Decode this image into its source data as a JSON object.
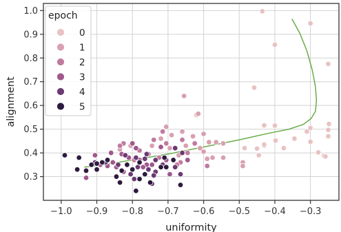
{
  "chart_data": {
    "type": "scatter",
    "xlabel": "uniformity",
    "ylabel": "alignment",
    "xlim": [
      -1.05,
      -0.22
    ],
    "ylim": [
      0.2,
      1.03
    ],
    "xticks": [
      -1.0,
      -0.9,
      -0.8,
      -0.7,
      -0.6,
      -0.5,
      -0.4,
      -0.3
    ],
    "xtick_labels": [
      "−1.0",
      "−0.9",
      "−0.8",
      "−0.7",
      "−0.6",
      "−0.5",
      "−0.4",
      "−0.3"
    ],
    "yticks": [
      0.3,
      0.4,
      0.5,
      0.6,
      0.7,
      0.8,
      0.9,
      1.0
    ],
    "ytick_labels": [
      "0.3",
      "0.4",
      "0.5",
      "0.6",
      "0.7",
      "0.8",
      "0.9",
      "1.0"
    ],
    "grid": true,
    "legend": {
      "title": "epoch",
      "placement": "top-left"
    },
    "series": [
      {
        "name": "0",
        "color": "#e8c3c3",
        "points": [
          [
            -0.435,
            0.997
          ],
          [
            -0.3,
            0.946
          ],
          [
            -0.4,
            0.856
          ],
          [
            -0.25,
            0.775
          ],
          [
            -0.458,
            0.675
          ],
          [
            -0.248,
            0.522
          ],
          [
            -0.43,
            0.516
          ],
          [
            -0.25,
            0.497
          ],
          [
            -0.4,
            0.515
          ],
          [
            -0.3,
            0.505
          ],
          [
            -0.25,
            0.47
          ],
          [
            -0.398,
            0.452
          ],
          [
            -0.3,
            0.447
          ],
          [
            -0.43,
            0.43
          ],
          [
            -0.45,
            0.418
          ],
          [
            -0.278,
            0.402
          ],
          [
            -0.262,
            0.388
          ],
          [
            -0.258,
            0.385
          ],
          [
            -0.445,
            0.39
          ],
          [
            -0.375,
            0.42
          ],
          [
            -0.485,
            0.42
          ],
          [
            -0.43,
            0.435
          ],
          [
            -0.31,
            0.49
          ],
          [
            -0.345,
            0.46
          ],
          [
            -0.62,
            0.56
          ]
        ]
      },
      {
        "name": "1",
        "color": "#d8a0b0",
        "points": [
          [
            -0.655,
            0.64
          ],
          [
            -0.615,
            0.565
          ],
          [
            -0.705,
            0.51
          ],
          [
            -0.66,
            0.49
          ],
          [
            -0.69,
            0.475
          ],
          [
            -0.63,
            0.47
          ],
          [
            -0.6,
            0.48
          ],
          [
            -0.72,
            0.46
          ],
          [
            -0.565,
            0.445
          ],
          [
            -0.61,
            0.42
          ],
          [
            -0.6,
            0.405
          ],
          [
            -0.65,
            0.43
          ],
          [
            -0.59,
            0.375
          ],
          [
            -0.545,
            0.44
          ],
          [
            -0.49,
            0.36
          ],
          [
            -0.745,
            0.43
          ],
          [
            -0.695,
            0.42
          ],
          [
            -0.805,
            0.43
          ],
          [
            -0.835,
            0.415
          ],
          [
            -0.86,
            0.4
          ],
          [
            -0.67,
            0.39
          ],
          [
            -0.585,
            0.445
          ],
          [
            -0.49,
            0.345
          ],
          [
            -0.545,
            0.38
          ],
          [
            -0.575,
            0.38
          ]
        ]
      },
      {
        "name": "2",
        "color": "#c07aa0",
        "points": [
          [
            -0.825,
            0.44
          ],
          [
            -0.715,
            0.49
          ],
          [
            -0.74,
            0.455
          ],
          [
            -0.66,
            0.455
          ],
          [
            -0.705,
            0.44
          ],
          [
            -0.78,
            0.41
          ],
          [
            -0.755,
            0.395
          ],
          [
            -0.725,
            0.38
          ],
          [
            -0.645,
            0.4
          ],
          [
            -0.59,
            0.345
          ],
          [
            -0.795,
            0.37
          ],
          [
            -0.665,
            0.36
          ],
          [
            -0.625,
            0.44
          ],
          [
            -0.835,
            0.43
          ],
          [
            -0.675,
            0.35
          ]
        ]
      },
      {
        "name": "3",
        "color": "#a0588c",
        "points": [
          [
            -0.8,
            0.44
          ],
          [
            -0.79,
            0.42
          ],
          [
            -0.72,
            0.425
          ],
          [
            -0.86,
            0.4
          ],
          [
            -0.905,
            0.39
          ],
          [
            -0.855,
            0.36
          ],
          [
            -0.81,
            0.38
          ],
          [
            -0.89,
            0.35
          ],
          [
            -0.825,
            0.32
          ],
          [
            -0.78,
            0.37
          ],
          [
            -0.76,
            0.35
          ],
          [
            -0.705,
            0.37
          ],
          [
            -0.77,
            0.34
          ],
          [
            -0.93,
            0.295
          ],
          [
            -0.695,
            0.31
          ],
          [
            -0.645,
            0.37
          ],
          [
            -0.745,
            0.35
          ],
          [
            -0.87,
            0.345
          ],
          [
            -0.845,
            0.34
          ],
          [
            -0.83,
            0.395
          ]
        ]
      },
      {
        "name": "4",
        "color": "#6b3a72",
        "points": [
          [
            -0.82,
            0.39
          ],
          [
            -0.79,
            0.38
          ],
          [
            -0.765,
            0.375
          ],
          [
            -0.735,
            0.37
          ],
          [
            -0.905,
            0.36
          ],
          [
            -0.875,
            0.36
          ],
          [
            -0.84,
            0.35
          ],
          [
            -0.715,
            0.35
          ],
          [
            -0.68,
            0.34
          ],
          [
            -0.785,
            0.34
          ],
          [
            -0.755,
            0.33
          ],
          [
            -0.735,
            0.32
          ],
          [
            -0.805,
            0.31
          ],
          [
            -0.795,
            0.29
          ],
          [
            -0.745,
            0.27
          ],
          [
            -0.665,
            0.31
          ],
          [
            -0.66,
            0.4
          ],
          [
            -0.68,
            0.42
          ],
          [
            -0.76,
            0.395
          ],
          [
            -0.74,
            0.305
          ]
        ]
      },
      {
        "name": "5",
        "color": "#2d1a3e",
        "points": [
          [
            -0.99,
            0.39
          ],
          [
            -0.95,
            0.38
          ],
          [
            -0.915,
            0.35
          ],
          [
            -0.9,
            0.33
          ],
          [
            -0.885,
            0.36
          ],
          [
            -0.87,
            0.37
          ],
          [
            -0.845,
            0.3
          ],
          [
            -0.835,
            0.275
          ],
          [
            -0.815,
            0.35
          ],
          [
            -0.8,
            0.33
          ],
          [
            -0.78,
            0.29
          ],
          [
            -0.79,
            0.24
          ],
          [
            -0.75,
            0.275
          ],
          [
            -0.72,
            0.34
          ],
          [
            -0.705,
            0.34
          ],
          [
            -0.685,
            0.37
          ],
          [
            -0.665,
            0.265
          ],
          [
            -0.78,
            0.36
          ],
          [
            -0.955,
            0.33
          ],
          [
            -0.93,
            0.325
          ],
          [
            -0.83,
            0.325
          ],
          [
            -0.9,
            0.355
          ],
          [
            -0.765,
            0.31
          ],
          [
            -0.71,
            0.38
          ]
        ]
      }
    ],
    "trend_line": {
      "color": "#6aac48",
      "points": [
        [
          -0.352,
          0.965
        ],
        [
          -0.33,
          0.905
        ],
        [
          -0.31,
          0.83
        ],
        [
          -0.295,
          0.75
        ],
        [
          -0.286,
          0.68
        ],
        [
          -0.283,
          0.62
        ],
        [
          -0.286,
          0.575
        ],
        [
          -0.298,
          0.545
        ],
        [
          -0.32,
          0.52
        ],
        [
          -0.36,
          0.5
        ],
        [
          -0.41,
          0.485
        ],
        [
          -0.5,
          0.455
        ],
        [
          -0.6,
          0.425
        ],
        [
          -0.7,
          0.395
        ],
        [
          -0.8,
          0.37
        ],
        [
          -0.88,
          0.35
        ],
        [
          -0.935,
          0.34
        ]
      ]
    }
  }
}
